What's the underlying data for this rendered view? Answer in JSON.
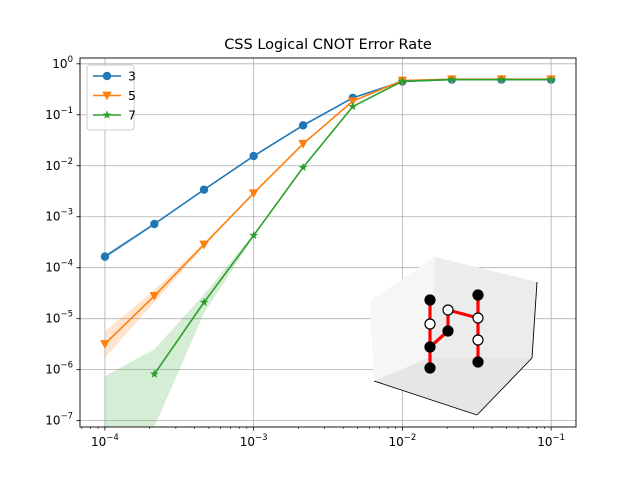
{
  "chart_data": {
    "type": "line",
    "title": "CSS Logical CNOT Error Rate",
    "xlabel": "",
    "ylabel": "",
    "xscale": "log",
    "yscale": "log",
    "xlim": [
      6.8e-05,
      0.147
    ],
    "ylim": [
      7.5e-08,
      1.3
    ],
    "grid": true,
    "legend_position": "upper-left",
    "x_ticks": [
      {
        "base": "10",
        "exp": "−4",
        "value": 0.0001
      },
      {
        "base": "10",
        "exp": "−3",
        "value": 0.001
      },
      {
        "base": "10",
        "exp": "−2",
        "value": 0.01
      },
      {
        "base": "10",
        "exp": "−1",
        "value": 0.1
      }
    ],
    "y_ticks": [
      {
        "base": "10",
        "exp": "−7",
        "value": 1e-07
      },
      {
        "base": "10",
        "exp": "−6",
        "value": 1e-06
      },
      {
        "base": "10",
        "exp": "−5",
        "value": 1e-05
      },
      {
        "base": "10",
        "exp": "−4",
        "value": 0.0001
      },
      {
        "base": "10",
        "exp": "−3",
        "value": 0.001
      },
      {
        "base": "10",
        "exp": "−2",
        "value": 0.01
      },
      {
        "base": "10",
        "exp": "−1",
        "value": 0.1
      },
      {
        "base": "10",
        "exp": "0",
        "value": 1
      }
    ],
    "series": [
      {
        "name": "3",
        "color": "#1f77b4",
        "marker": "circle",
        "x": [
          0.0001,
          0.000215,
          0.000464,
          0.001,
          0.00215,
          0.00464,
          0.01,
          0.0215,
          0.0464,
          0.1
        ],
        "y": [
          0.000165,
          0.00072,
          0.0034,
          0.0155,
          0.062,
          0.215,
          0.45,
          0.49,
          0.49,
          0.49
        ],
        "band_low": [
          0.000148,
          0.00068,
          0.0033,
          0.0151,
          0.061,
          0.212,
          0.445,
          0.485,
          0.485,
          0.485
        ],
        "band_high": [
          0.000182,
          0.00076,
          0.0035,
          0.0159,
          0.063,
          0.218,
          0.455,
          0.495,
          0.495,
          0.495
        ]
      },
      {
        "name": "5",
        "color": "#ff7f0e",
        "marker": "triangle-down",
        "x": [
          0.0001,
          0.000215,
          0.000464,
          0.001,
          0.00215,
          0.00464,
          0.01,
          0.0215,
          0.0464,
          0.1
        ],
        "y": [
          3.2e-06,
          2.8e-05,
          0.000285,
          0.0029,
          0.027,
          0.185,
          0.47,
          0.5,
          0.5,
          0.5
        ],
        "band_low": [
          1.7e-06,
          2.1e-05,
          0.00026,
          0.00285,
          0.0267,
          0.183,
          0.465,
          0.495,
          0.495,
          0.495
        ],
        "band_high": [
          5.6e-06,
          3.7e-05,
          0.00031,
          0.00295,
          0.0273,
          0.187,
          0.475,
          0.505,
          0.505,
          0.505
        ]
      },
      {
        "name": "7",
        "color": "#2ca02c",
        "marker": "star",
        "x": [
          0.000215,
          0.000464,
          0.001,
          0.00215,
          0.00464,
          0.01,
          0.0215,
          0.0464,
          0.1
        ],
        "y": [
          8.2e-07,
          2.1e-05,
          0.00043,
          0.0093,
          0.145,
          0.455,
          0.49,
          0.49,
          0.49
        ],
        "band_x": [
          0.0001,
          0.000215,
          0.000464,
          0.001,
          0.00215,
          0.00464,
          0.01,
          0.0215,
          0.0464,
          0.1
        ],
        "band_low": [
          7.5e-08,
          7.5e-08,
          1.3e-05,
          0.0004,
          0.0091,
          0.143,
          0.45,
          0.485,
          0.485,
          0.485
        ],
        "band_high": [
          7.5e-07,
          2.5e-06,
          3e-05,
          0.00046,
          0.0095,
          0.147,
          0.46,
          0.495,
          0.495,
          0.495
        ]
      }
    ],
    "inset": {
      "type": "3d-lattice-diagram",
      "edge_color": "#ff0000",
      "filled_node_color": "#000000",
      "open_node_color": "#ffffff"
    }
  }
}
